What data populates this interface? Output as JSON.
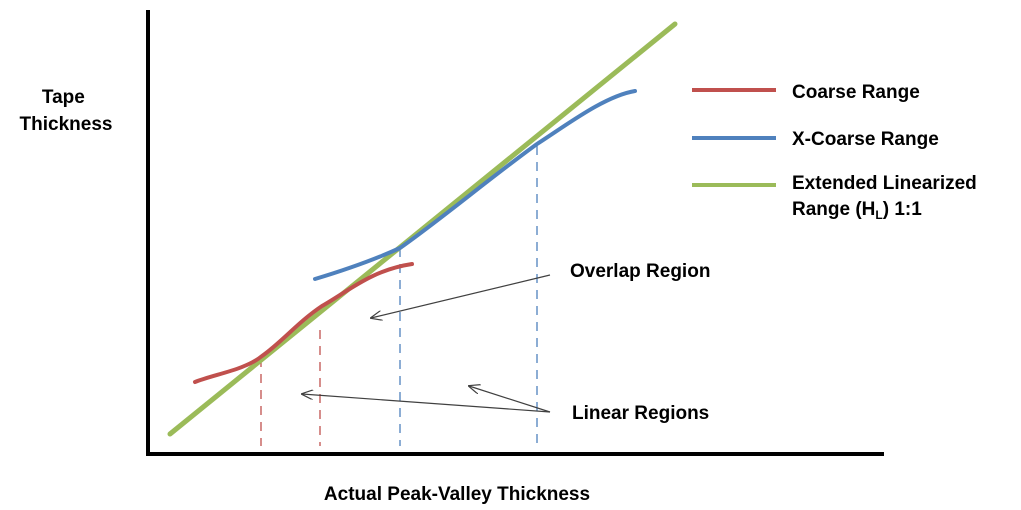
{
  "y_axis_label": [
    "Tape",
    "Thickness"
  ],
  "x_axis_label": "Actual Peak-Valley Thickness",
  "legend": [
    {
      "label": "Coarse Range",
      "color": "#c0504d"
    },
    {
      "label": "X-Coarse Range",
      "color": "#4f81bd"
    },
    {
      "label_lines": [
        "Extended Linearized",
        "Range (H",
        "L",
        ")   1:1"
      ],
      "color": "#9bbb59"
    }
  ],
  "annotations": {
    "overlap": "Overlap Region",
    "linear": "Linear Regions"
  },
  "colors": {
    "axis": "#000000",
    "coarse": "#c0504d",
    "xcoarse": "#4f81bd",
    "linear": "#9bbb59",
    "arrow": "#404040"
  }
}
